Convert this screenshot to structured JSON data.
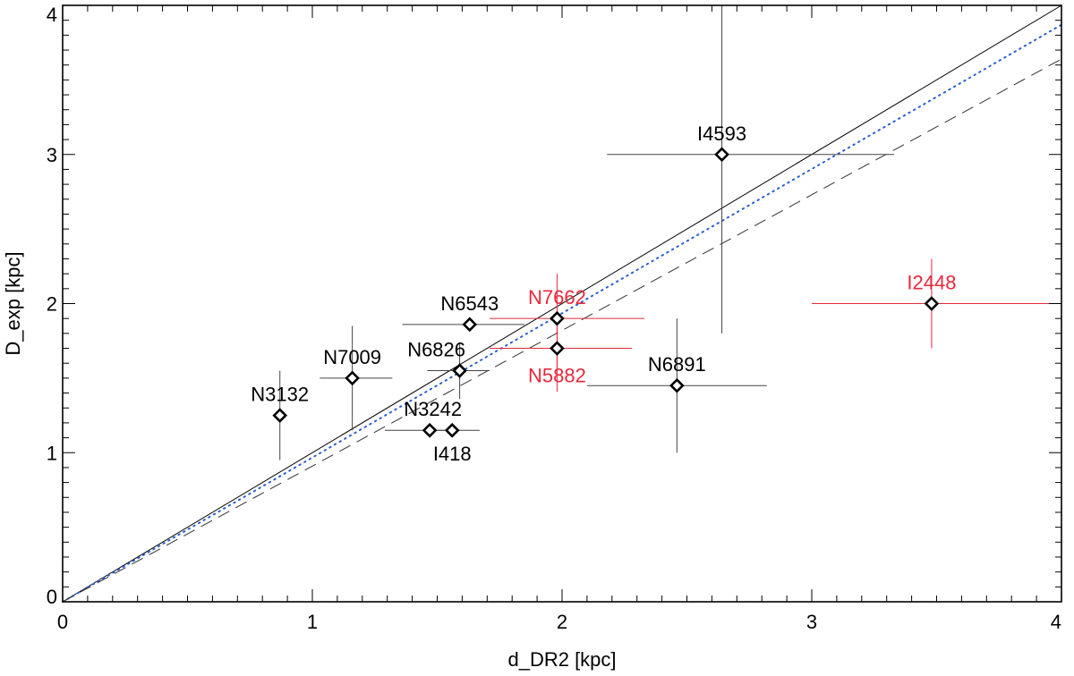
{
  "chart_data": {
    "type": "scatter",
    "title": "",
    "xlabel": "d_DR2 [kpc]",
    "ylabel": "D_exp [kpc]",
    "xlim": [
      0,
      4
    ],
    "ylim": [
      0,
      4
    ],
    "x_ticks": [
      0,
      1,
      2,
      3,
      4
    ],
    "y_ticks": [
      0,
      1,
      2,
      3,
      4
    ],
    "x_tick_labels": [
      "0",
      "1",
      "2",
      "3",
      "4"
    ],
    "y_tick_labels": [
      "0",
      "1",
      "2",
      "3",
      "4"
    ],
    "grid": false,
    "colors": {
      "black_label": "#000000",
      "red_label": "#e8283c",
      "black_errorbar": "#444444",
      "red_errorbar": "#e8283c",
      "blue_fit": "#2a5fd1",
      "dashed_fit": "#333333"
    },
    "lines": [
      {
        "style": "solid",
        "color": "#000000",
        "x": [
          0,
          4
        ],
        "y": [
          0,
          4
        ]
      },
      {
        "style": "dotted",
        "color": "#2a5fd1",
        "x": [
          0,
          4
        ],
        "y": [
          0,
          3.87
        ]
      },
      {
        "style": "dashed",
        "color": "#333333",
        "x": [
          0,
          4
        ],
        "y": [
          0,
          3.64
        ]
      }
    ],
    "points": [
      {
        "label": "N3132",
        "x": 0.87,
        "y": 1.25,
        "xerr": [
          0.87,
          0.87
        ],
        "yerr": [
          0.95,
          1.55
        ],
        "color": "black"
      },
      {
        "label": "N7009",
        "x": 1.16,
        "y": 1.5,
        "xerr": [
          1.03,
          1.32
        ],
        "yerr": [
          1.15,
          1.85
        ],
        "color": "black"
      },
      {
        "label": "N3242",
        "x": 1.47,
        "y": 1.15,
        "xerr": [
          1.29,
          1.53
        ],
        "yerr": [
          1.15,
          1.15
        ],
        "color": "black"
      },
      {
        "label": "I418",
        "x": 1.56,
        "y": 1.15,
        "xerr": [
          1.49,
          1.67
        ],
        "yerr": [
          1.15,
          1.15
        ],
        "color": "black"
      },
      {
        "label": "N6543",
        "x": 1.63,
        "y": 1.86,
        "xerr": [
          1.36,
          1.85
        ],
        "yerr": [
          1.86,
          1.86
        ],
        "color": "black"
      },
      {
        "label": "N6826",
        "x": 1.59,
        "y": 1.55,
        "xerr": [
          1.46,
          1.71
        ],
        "yerr": [
          1.36,
          1.74
        ],
        "color": "black"
      },
      {
        "label": "N7662",
        "x": 1.98,
        "y": 1.9,
        "xerr": [
          1.71,
          2.33
        ],
        "yerr": [
          1.55,
          2.2
        ],
        "color": "red"
      },
      {
        "label": "N5882",
        "x": 1.98,
        "y": 1.7,
        "xerr": [
          1.71,
          2.28
        ],
        "yerr": [
          1.41,
          1.95
        ],
        "color": "red"
      },
      {
        "label": "N6891",
        "x": 2.46,
        "y": 1.45,
        "xerr": [
          2.1,
          2.82
        ],
        "yerr": [
          1.0,
          1.9
        ],
        "color": "black"
      },
      {
        "label": "I4593",
        "x": 2.64,
        "y": 3.0,
        "xerr": [
          2.18,
          3.33
        ],
        "yerr": [
          1.8,
          4.0
        ],
        "color": "black"
      },
      {
        "label": "I2448",
        "x": 3.48,
        "y": 2.0,
        "xerr": [
          3.0,
          4.0
        ],
        "yerr": [
          1.7,
          2.3
        ],
        "color": "red"
      }
    ]
  }
}
